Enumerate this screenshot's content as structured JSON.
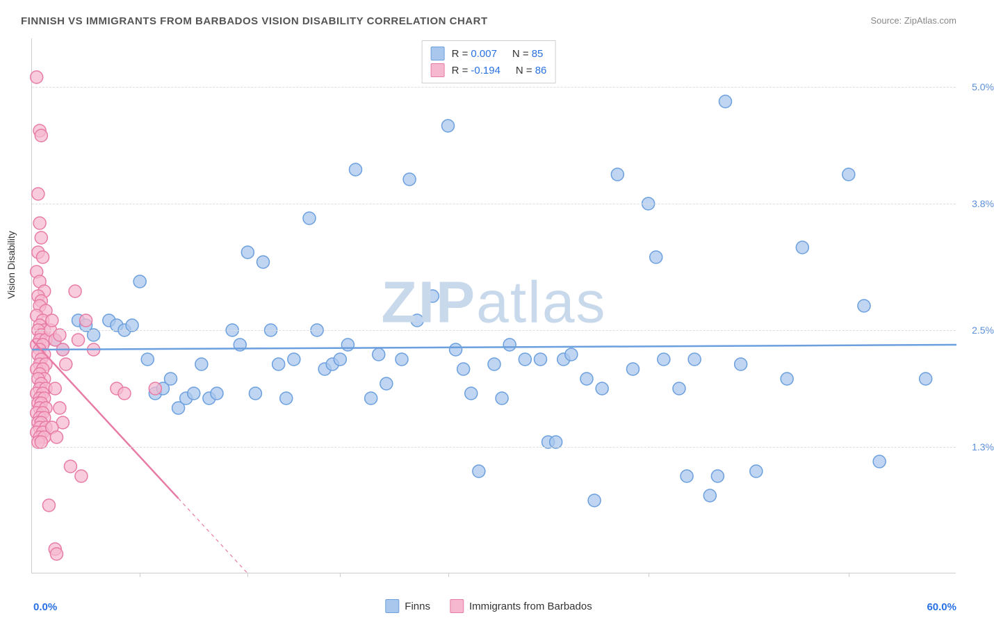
{
  "title": "FINNISH VS IMMIGRANTS FROM BARBADOS VISION DISABILITY CORRELATION CHART",
  "source_label": "Source: ",
  "source_name": "ZipAtlas.com",
  "ylabel": "Vision Disability",
  "watermark_bold": "ZIP",
  "watermark_light": "atlas",
  "watermark_color": "#c9d9ec",
  "chart": {
    "type": "scatter",
    "background_color": "#ffffff",
    "grid_color": "#dddddd",
    "axis_color": "#cccccc",
    "marker_radius": 9,
    "marker_stroke_width": 1.5,
    "line_width": 2.5,
    "xlim": [
      0,
      60
    ],
    "ylim": [
      0,
      5.5
    ],
    "xtick_positions": [
      7,
      14,
      20,
      27,
      40,
      53
    ],
    "yticks": [
      {
        "pos": 1.3,
        "label": "1.3%",
        "color": "#5b8fd9"
      },
      {
        "pos": 2.5,
        "label": "2.5%",
        "color": "#5b8fd9"
      },
      {
        "pos": 3.8,
        "label": "3.8%",
        "color": "#5b8fd9"
      },
      {
        "pos": 5.0,
        "label": "5.0%",
        "color": "#5b8fd9"
      }
    ],
    "xaxis_min_label": "0.0%",
    "xaxis_max_label": "60.0%",
    "xaxis_label_color": "#2970e3",
    "series": [
      {
        "name": "Finns",
        "color_fill": "#a9c7ec",
        "color_stroke": "#6b9fde",
        "marker_opacity": 0.75,
        "R": "0.007",
        "N": "85",
        "trend": {
          "x1": 0,
          "y1": 2.3,
          "x2": 60,
          "y2": 2.35,
          "solid_until_x": 60
        },
        "points": [
          [
            1.5,
            2.4
          ],
          [
            2,
            2.3
          ],
          [
            3,
            2.6
          ],
          [
            3.5,
            2.55
          ],
          [
            4,
            2.45
          ],
          [
            5,
            2.6
          ],
          [
            5.5,
            2.55
          ],
          [
            6,
            2.5
          ],
          [
            6.5,
            2.55
          ],
          [
            7,
            3.0
          ],
          [
            7.5,
            2.2
          ],
          [
            8,
            1.85
          ],
          [
            8.5,
            1.9
          ],
          [
            9,
            2.0
          ],
          [
            9.5,
            1.7
          ],
          [
            10,
            1.8
          ],
          [
            10.5,
            1.85
          ],
          [
            11,
            2.15
          ],
          [
            11.5,
            1.8
          ],
          [
            12,
            1.85
          ],
          [
            13,
            2.5
          ],
          [
            13.5,
            2.35
          ],
          [
            14,
            3.3
          ],
          [
            14.5,
            1.85
          ],
          [
            15,
            3.2
          ],
          [
            15.5,
            2.5
          ],
          [
            16,
            2.15
          ],
          [
            16.5,
            1.8
          ],
          [
            17,
            2.2
          ],
          [
            18,
            3.65
          ],
          [
            18.5,
            2.5
          ],
          [
            19,
            2.1
          ],
          [
            19.5,
            2.15
          ],
          [
            20,
            2.2
          ],
          [
            20.5,
            2.35
          ],
          [
            21,
            4.15
          ],
          [
            22,
            1.8
          ],
          [
            22.5,
            2.25
          ],
          [
            23,
            1.95
          ],
          [
            24,
            2.2
          ],
          [
            24.5,
            4.05
          ],
          [
            25,
            2.6
          ],
          [
            26,
            2.85
          ],
          [
            27,
            4.6
          ],
          [
            27.5,
            2.3
          ],
          [
            28,
            2.1
          ],
          [
            28.5,
            1.85
          ],
          [
            29,
            1.05
          ],
          [
            30,
            2.15
          ],
          [
            30.5,
            1.8
          ],
          [
            31,
            2.35
          ],
          [
            32,
            2.2
          ],
          [
            33,
            2.2
          ],
          [
            33.5,
            1.35
          ],
          [
            34,
            1.35
          ],
          [
            34.5,
            2.2
          ],
          [
            35,
            2.25
          ],
          [
            36,
            2.0
          ],
          [
            36.5,
            0.75
          ],
          [
            37,
            1.9
          ],
          [
            38,
            4.1
          ],
          [
            39,
            2.1
          ],
          [
            40,
            3.8
          ],
          [
            40.5,
            3.25
          ],
          [
            41,
            2.2
          ],
          [
            42,
            1.9
          ],
          [
            42.5,
            1.0
          ],
          [
            43,
            2.2
          ],
          [
            44,
            0.8
          ],
          [
            44.5,
            1.0
          ],
          [
            45,
            4.85
          ],
          [
            46,
            2.15
          ],
          [
            47,
            1.05
          ],
          [
            49,
            2.0
          ],
          [
            50,
            3.35
          ],
          [
            53,
            4.1
          ],
          [
            54,
            2.75
          ],
          [
            55,
            1.15
          ],
          [
            58,
            2.0
          ]
        ]
      },
      {
        "name": "Immigrants from Barbados",
        "color_fill": "#f5b8cf",
        "color_stroke": "#e87ba5",
        "marker_opacity": 0.72,
        "R": "-0.194",
        "N": "86",
        "trend": {
          "x1": 0,
          "y1": 2.4,
          "x2": 14,
          "y2": 0.0,
          "solid_until_x": 9.5
        },
        "points": [
          [
            0.3,
            5.1
          ],
          [
            0.5,
            4.55
          ],
          [
            0.6,
            4.5
          ],
          [
            0.4,
            3.9
          ],
          [
            0.5,
            3.6
          ],
          [
            0.6,
            3.45
          ],
          [
            0.4,
            3.3
          ],
          [
            0.7,
            3.25
          ],
          [
            0.3,
            3.1
          ],
          [
            0.5,
            3.0
          ],
          [
            0.8,
            2.9
          ],
          [
            0.4,
            2.85
          ],
          [
            0.6,
            2.8
          ],
          [
            0.5,
            2.75
          ],
          [
            0.9,
            2.7
          ],
          [
            0.3,
            2.65
          ],
          [
            0.7,
            2.6
          ],
          [
            0.5,
            2.55
          ],
          [
            0.8,
            2.5
          ],
          [
            0.4,
            2.5
          ],
          [
            0.6,
            2.45
          ],
          [
            0.5,
            2.4
          ],
          [
            0.9,
            2.4
          ],
          [
            0.3,
            2.35
          ],
          [
            0.7,
            2.35
          ],
          [
            0.5,
            2.3
          ],
          [
            0.8,
            2.25
          ],
          [
            0.4,
            2.25
          ],
          [
            0.6,
            2.2
          ],
          [
            0.5,
            2.15
          ],
          [
            0.9,
            2.15
          ],
          [
            0.3,
            2.1
          ],
          [
            0.7,
            2.1
          ],
          [
            0.5,
            2.05
          ],
          [
            0.8,
            2.0
          ],
          [
            0.4,
            2.0
          ],
          [
            0.6,
            1.95
          ],
          [
            0.5,
            1.9
          ],
          [
            0.9,
            1.9
          ],
          [
            0.3,
            1.85
          ],
          [
            0.7,
            1.85
          ],
          [
            0.5,
            1.8
          ],
          [
            0.8,
            1.8
          ],
          [
            0.4,
            1.75
          ],
          [
            0.6,
            1.75
          ],
          [
            0.5,
            1.7
          ],
          [
            0.9,
            1.7
          ],
          [
            0.3,
            1.65
          ],
          [
            0.7,
            1.65
          ],
          [
            0.5,
            1.6
          ],
          [
            0.8,
            1.6
          ],
          [
            0.4,
            1.55
          ],
          [
            0.6,
            1.55
          ],
          [
            0.5,
            1.5
          ],
          [
            0.9,
            1.5
          ],
          [
            0.3,
            1.45
          ],
          [
            0.7,
            1.45
          ],
          [
            0.5,
            1.4
          ],
          [
            0.8,
            1.4
          ],
          [
            0.4,
            1.35
          ],
          [
            0.6,
            1.35
          ],
          [
            1.2,
            2.5
          ],
          [
            1.5,
            2.4
          ],
          [
            1.3,
            2.6
          ],
          [
            1.8,
            2.45
          ],
          [
            2.0,
            2.3
          ],
          [
            2.2,
            2.15
          ],
          [
            1.5,
            1.9
          ],
          [
            1.8,
            1.7
          ],
          [
            2.0,
            1.55
          ],
          [
            1.3,
            1.5
          ],
          [
            1.6,
            1.4
          ],
          [
            1.1,
            0.7
          ],
          [
            1.5,
            0.25
          ],
          [
            1.6,
            0.2
          ],
          [
            2.5,
            1.1
          ],
          [
            2.8,
            2.9
          ],
          [
            3.0,
            2.4
          ],
          [
            3.2,
            1.0
          ],
          [
            3.5,
            2.6
          ],
          [
            4.0,
            2.3
          ],
          [
            5.5,
            1.9
          ],
          [
            6.0,
            1.85
          ],
          [
            8.0,
            1.9
          ]
        ]
      }
    ]
  }
}
